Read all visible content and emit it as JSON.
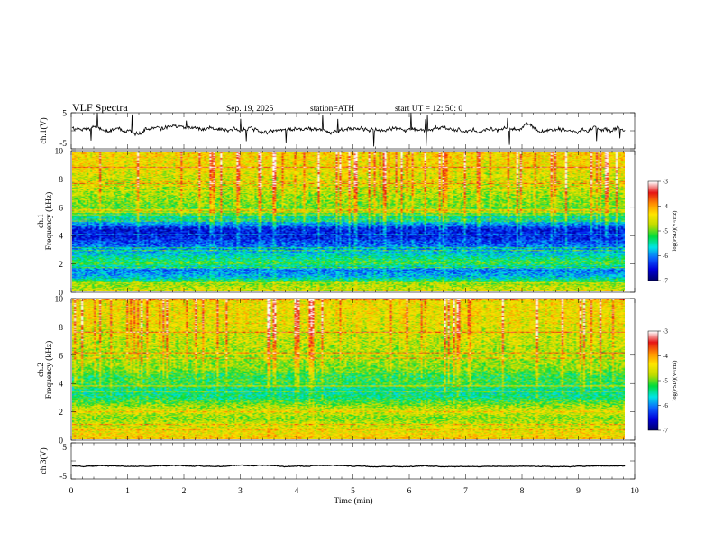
{
  "header": {
    "title": "VLF Spectra",
    "date": "Sep. 19, 2025",
    "station": "station=ATH",
    "start": "start  UT  =   12: 50: 0"
  },
  "axes": {
    "ch1_waveform_label": "ch.1(V)",
    "ch1_spec_label_1": "ch.1",
    "ch1_spec_label_2": "Frequency (kHz)",
    "ch2_spec_label_1": "ch.2",
    "ch2_spec_label_2": "Frequency (kHz)",
    "ch3_waveform_label": "ch.3(V)",
    "time_label": "Time  (min)",
    "colorbar_label": "log(PSD)(V²/Hz)"
  },
  "colors": {
    "waveform": "#000000",
    "spectrogram_colormap": [
      "#00006e",
      "#0000dc",
      "#0a64ff",
      "#00e6e6",
      "#00dc3c",
      "#bedc00",
      "#ffe600",
      "#ff8c00",
      "#e61414",
      "#ffffff"
    ]
  },
  "chart_data": [
    {
      "type": "line",
      "name": "ch1-waveform",
      "title": "VLF Spectra",
      "xlabel": "Time  (min)",
      "ylabel": "ch.1(V)",
      "xlim": [
        0,
        10
      ],
      "ylim": [
        -5,
        5
      ],
      "x_ticks": [
        "0",
        "1",
        "2",
        "3",
        "4",
        "5",
        "6",
        "7",
        "8",
        "9",
        "10"
      ],
      "y_ticks": [
        "-5",
        "5"
      ],
      "x_data_end_min": 9.83,
      "mean_volts": 0.6,
      "noise_amplitude_volts": 1.2
    },
    {
      "type": "heatmap",
      "name": "ch1-spectrogram",
      "xlabel": "Time  (min)",
      "ylabel": "Frequency (kHz)",
      "xlim": [
        0,
        10
      ],
      "ylim": [
        0,
        10
      ],
      "y_ticks": [
        "0",
        "2",
        "4",
        "6",
        "8",
        "10"
      ],
      "x_data_end_min": 9.83,
      "colorbar": {
        "label": "log(PSD)(V²/Hz)",
        "range": [
          -7,
          -3
        ],
        "ticks": [
          "-3",
          "-4",
          "-5",
          "-6",
          "-7"
        ]
      },
      "level_profile_by_freq_kHz": [
        {
          "f": 0.0,
          "v": -4.6
        },
        {
          "f": 0.5,
          "v": -4.9
        },
        {
          "f": 1.0,
          "v": -5.8
        },
        {
          "f": 1.5,
          "v": -6.1
        },
        {
          "f": 2.0,
          "v": -5.2
        },
        {
          "f": 2.5,
          "v": -5.6
        },
        {
          "f": 3.0,
          "v": -6.0
        },
        {
          "f": 3.5,
          "v": -6.3
        },
        {
          "f": 4.0,
          "v": -6.6
        },
        {
          "f": 4.5,
          "v": -6.5
        },
        {
          "f": 5.0,
          "v": -5.8
        },
        {
          "f": 6.0,
          "v": -5.1
        },
        {
          "f": 7.0,
          "v": -4.9
        },
        {
          "f": 8.0,
          "v": -4.8
        },
        {
          "f": 9.0,
          "v": -4.6
        },
        {
          "f": 10.0,
          "v": -4.5
        }
      ]
    },
    {
      "type": "heatmap",
      "name": "ch2-spectrogram",
      "xlabel": "Time  (min)",
      "ylabel": "Frequency (kHz)",
      "xlim": [
        0,
        10
      ],
      "ylim": [
        0,
        10
      ],
      "y_ticks": [
        "0",
        "2",
        "4",
        "6",
        "8",
        "10"
      ],
      "x_data_end_min": 9.83,
      "colorbar": {
        "label": "log(PSD)(V²/Hz)",
        "range": [
          -7,
          -3
        ],
        "ticks": [
          "-3",
          "-4",
          "-5",
          "-6",
          "-7"
        ]
      },
      "level_profile_by_freq_kHz": [
        {
          "f": 0.0,
          "v": -4.3
        },
        {
          "f": 0.5,
          "v": -4.5
        },
        {
          "f": 1.0,
          "v": -4.7
        },
        {
          "f": 1.5,
          "v": -4.9
        },
        {
          "f": 2.0,
          "v": -4.6
        },
        {
          "f": 2.5,
          "v": -5.0
        },
        {
          "f": 3.0,
          "v": -5.4
        },
        {
          "f": 3.5,
          "v": -5.5
        },
        {
          "f": 4.0,
          "v": -5.2
        },
        {
          "f": 4.5,
          "v": -5.3
        },
        {
          "f": 5.0,
          "v": -5.0
        },
        {
          "f": 6.0,
          "v": -4.9
        },
        {
          "f": 7.0,
          "v": -4.8
        },
        {
          "f": 8.0,
          "v": -4.7
        },
        {
          "f": 9.0,
          "v": -4.6
        },
        {
          "f": 10.0,
          "v": -4.6
        }
      ]
    },
    {
      "type": "line",
      "name": "ch3-waveform",
      "xlabel": "Time  (min)",
      "ylabel": "ch.3(V)",
      "xlim": [
        0,
        10
      ],
      "ylim": [
        -5,
        5
      ],
      "x_ticks": [
        "0",
        "1",
        "2",
        "3",
        "4",
        "5",
        "6",
        "7",
        "8",
        "9",
        "10"
      ],
      "y_ticks": [
        "-5",
        "5"
      ],
      "x_data_end_min": 9.83,
      "mean_volts": -1.4,
      "noise_amplitude_volts": 0.2
    }
  ]
}
